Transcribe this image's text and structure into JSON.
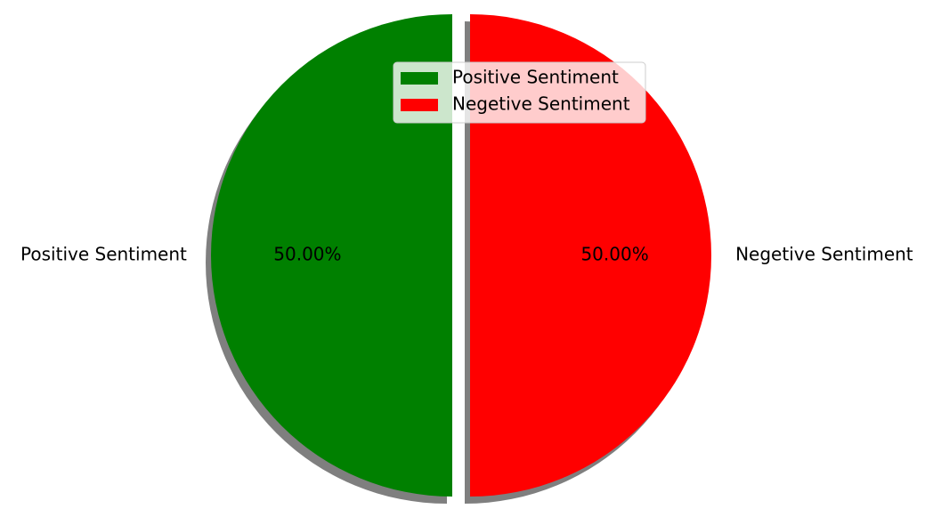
{
  "chart_data": {
    "type": "pie",
    "title": "",
    "categories": [
      "Positive Sentiment",
      "Negetive Sentiment"
    ],
    "values": [
      50,
      50
    ],
    "percent_labels": [
      "50.00%",
      "50.00%"
    ],
    "colors": [
      "#008000",
      "#ff0000"
    ],
    "exploded": true,
    "shadow": true,
    "legend": {
      "placement": "upper-center",
      "entries": [
        "Positive Sentiment",
        "Negetive Sentiment"
      ]
    }
  }
}
